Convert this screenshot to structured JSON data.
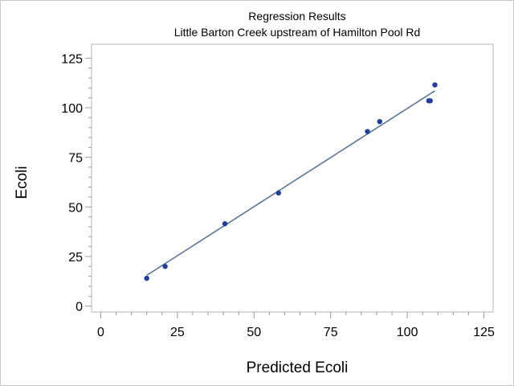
{
  "chart_data": {
    "type": "scatter",
    "title": "Regression Results",
    "subtitle": "Little Barton Creek upstream of Hamilton Pool Rd",
    "xlabel": "Predicted Ecoli",
    "ylabel": "Ecoli",
    "xlim": [
      -3,
      128
    ],
    "ylim": [
      -3,
      132
    ],
    "xticks": [
      0,
      25,
      50,
      75,
      100,
      125
    ],
    "yticks": [
      0,
      25,
      50,
      75,
      100,
      125
    ],
    "xtick_labels": [
      "0",
      "25",
      "50",
      "75",
      "100",
      "125"
    ],
    "ytick_labels": [
      "0",
      "25",
      "50",
      "75",
      "100",
      "125"
    ],
    "grid": false,
    "series": [
      {
        "points": [
          {
            "x": 15,
            "y": 14
          },
          {
            "x": 21,
            "y": 20
          },
          {
            "x": 40.5,
            "y": 41.5
          },
          {
            "x": 58,
            "y": 57
          },
          {
            "x": 87,
            "y": 88
          },
          {
            "x": 91,
            "y": 93
          },
          {
            "x": 107,
            "y": 103.5
          },
          {
            "x": 107.5,
            "y": 103.5
          },
          {
            "x": 109,
            "y": 111.5
          }
        ],
        "color": "#1f3f9a"
      }
    ],
    "fit_line": {
      "x": [
        15,
        109
      ],
      "y": [
        15.5,
        108.5
      ],
      "color": "#5a7497"
    }
  }
}
